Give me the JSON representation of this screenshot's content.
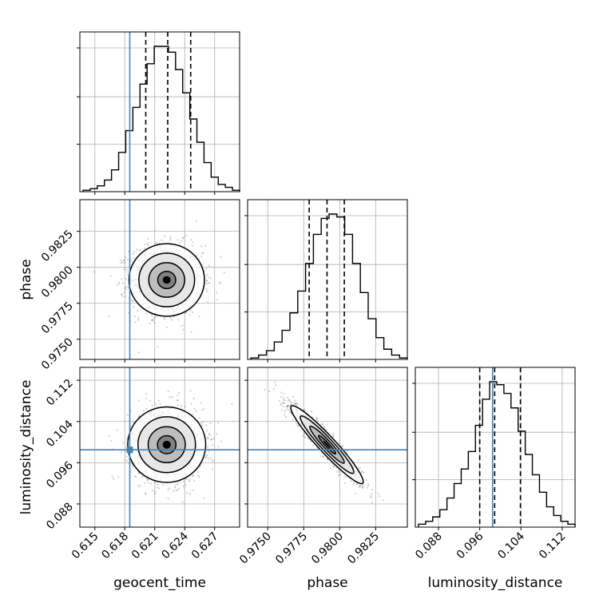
{
  "chart_data": {
    "type": "corner",
    "parameters": [
      "geocent_time",
      "phase",
      "luminosity_distance"
    ],
    "labels": {
      "geocent_time": "geocent_time",
      "phase": "phase",
      "luminosity_distance": "luminosity_distance"
    },
    "ranges": {
      "geocent_time": [
        0.6135,
        0.6295
      ],
      "phase": [
        0.9736,
        0.9847
      ],
      "luminosity_distance": [
        0.0835,
        0.1145
      ]
    },
    "ticks": {
      "geocent_time": [
        0.615,
        0.618,
        0.621,
        0.624,
        0.627
      ],
      "phase": [
        0.975,
        0.9775,
        0.98,
        0.9825
      ],
      "luminosity_distance": [
        0.088,
        0.096,
        0.104,
        0.112
      ]
    },
    "tick_labels": {
      "geocent_time": [
        "0.615",
        "0.618",
        "0.621",
        "0.624",
        "0.627"
      ],
      "phase": [
        "0.9750",
        "0.9775",
        "0.9800",
        "0.9825"
      ],
      "luminosity_distance": [
        "0.088",
        "0.096",
        "0.104",
        "0.112"
      ]
    },
    "truths": {
      "geocent_time": 0.6185,
      "phase": null,
      "luminosity_distance": 0.0985
    },
    "quantiles": {
      "geocent_time": [
        0.6201,
        0.6223,
        0.6246
      ],
      "phase": [
        0.97788,
        0.97912,
        0.98032
      ],
      "luminosity_distance": [
        0.096,
        0.0989,
        0.1039
      ]
    },
    "histograms": {
      "geocent_time": [
        0.01,
        0.02,
        0.04,
        0.08,
        0.15,
        0.27,
        0.42,
        0.58,
        0.74,
        0.88,
        1.0,
        1.0,
        0.96,
        0.84,
        0.68,
        0.5,
        0.34,
        0.2,
        0.1,
        0.05,
        0.03,
        0.01
      ],
      "phase": [
        0.01,
        0.03,
        0.06,
        0.12,
        0.2,
        0.32,
        0.47,
        0.66,
        0.86,
        0.97,
        1.0,
        0.98,
        0.86,
        0.66,
        0.46,
        0.28,
        0.15,
        0.07,
        0.03,
        0.01
      ],
      "luminosity_distance": [
        0.02,
        0.04,
        0.07,
        0.12,
        0.2,
        0.3,
        0.4,
        0.52,
        0.7,
        0.88,
        1.0,
        0.98,
        0.92,
        0.82,
        0.66,
        0.5,
        0.36,
        0.24,
        0.14,
        0.08,
        0.04,
        0.02
      ]
    },
    "pair_stats": {
      "phase_vs_geocent_time": {
        "x_mean": 0.6222,
        "x_sd": 0.0018,
        "y_mean": 0.97912,
        "y_sd": 0.0012,
        "rho": 0.0
      },
      "luminosity_distance_vs_geocent_time": {
        "x_mean": 0.6222,
        "x_sd": 0.0018,
        "y_mean": 0.0995,
        "y_sd": 0.0036,
        "rho": 0.0
      },
      "luminosity_distance_vs_phase": {
        "x_mean": 0.97912,
        "x_sd": 0.0012,
        "y_mean": 0.0995,
        "y_sd": 0.0036,
        "rho": -0.95
      }
    },
    "colors": {
      "truth": "#4682b4",
      "lines": "#000000",
      "grid": "#b0b0b0",
      "scatter": "#000000"
    },
    "grid": true
  }
}
